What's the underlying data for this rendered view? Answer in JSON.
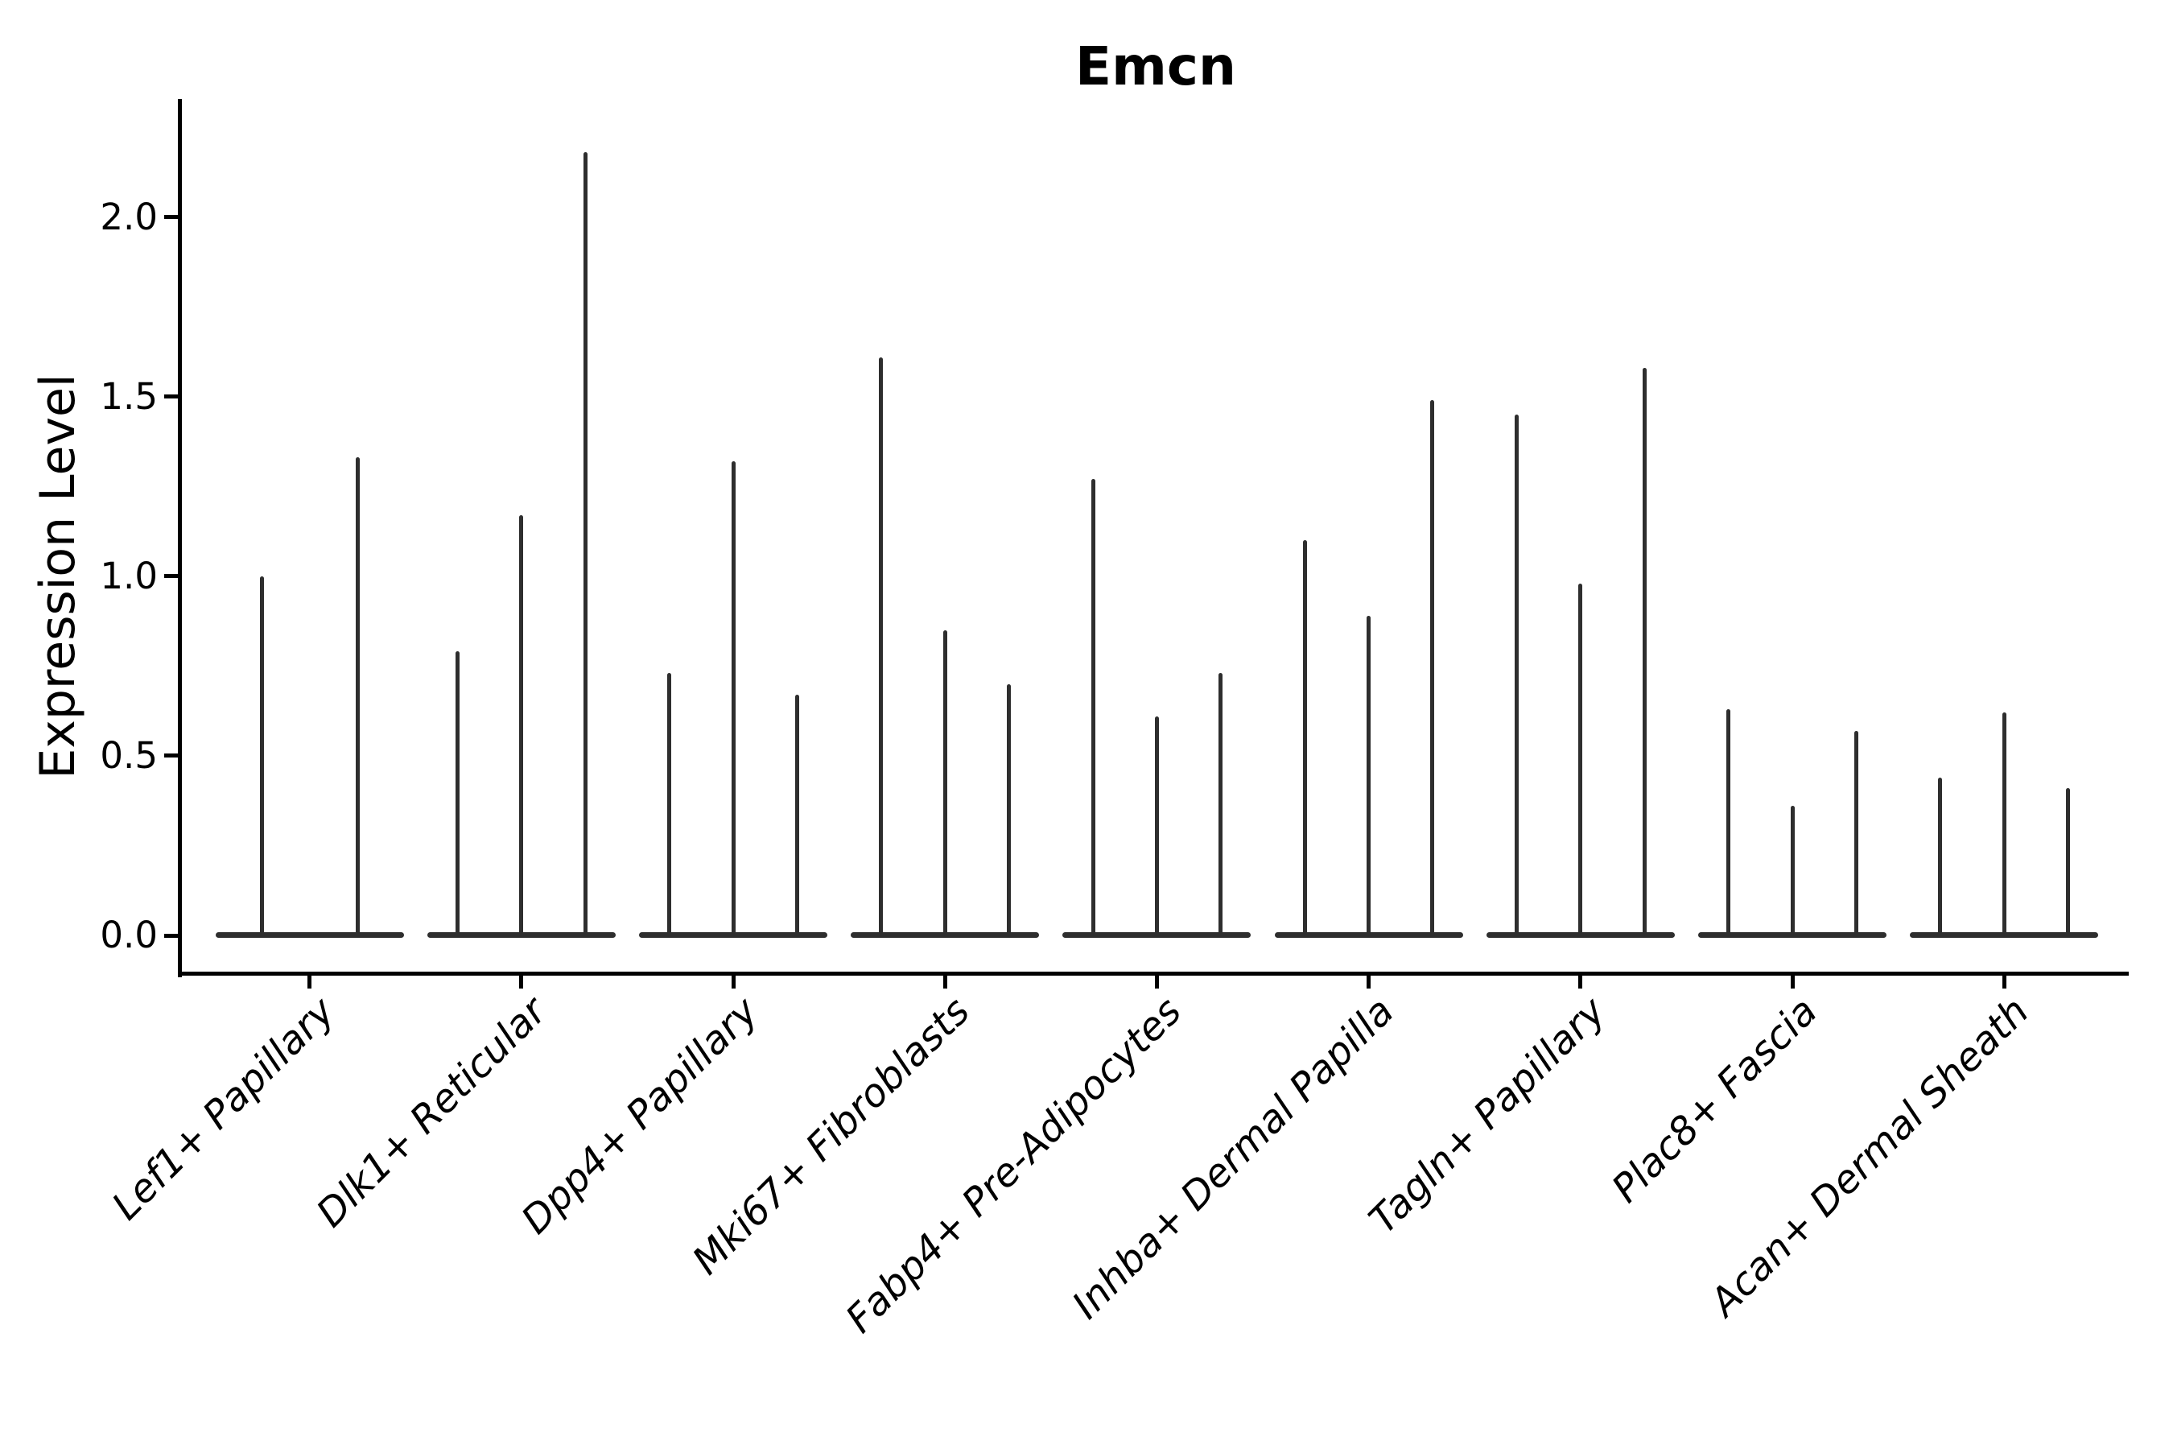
{
  "title": "Emcn",
  "y_axis": {
    "label": "Expression Level",
    "tick_labels": [
      "0.0",
      "0.5",
      "1.0",
      "1.5",
      "2.0"
    ],
    "tick_values": [
      0.0,
      0.5,
      1.0,
      1.5,
      2.0
    ]
  },
  "x_axis": {
    "label": "",
    "categories": [
      "Lef1+ Papillary",
      "Dlk1+ Reticular",
      "Dpp4+ Papillary",
      "Mki67+ Fibroblasts",
      "Fabp4+ Pre-Adipocytes",
      "Inhba+ Dermal Papilla",
      "Tagln+ Papillary",
      "Plac8+ Fascia",
      "Acan+ Dermal Sheath"
    ]
  },
  "colors": {
    "violin": "#2e2e2e",
    "axis": "#000000",
    "text": "#000000",
    "background": "#ffffff"
  },
  "chart_data": {
    "type": "violin",
    "title": "Emcn",
    "xlabel": "",
    "ylabel": "Expression Level",
    "ylim": [
      -0.11,
      2.33
    ],
    "yticks": [
      0.0,
      0.5,
      1.0,
      1.5,
      2.0
    ],
    "grid": false,
    "legend": "none",
    "mark_style": "zero-inflated violins: wide flat base at 0 with a single thin spike to the max expression value per violin",
    "categories": [
      "Lef1+ Papillary",
      "Dlk1+ Reticular",
      "Dpp4+ Papillary",
      "Mki67+ Fibroblasts",
      "Fabp4+ Pre-Adipocytes",
      "Inhba+ Dermal Papilla",
      "Tagln+ Papillary",
      "Plac8+ Fascia",
      "Acan+ Dermal Sheath"
    ],
    "series": [
      {
        "category": "Lef1+ Papillary",
        "violin_max_values": [
          1.0,
          1.33
        ]
      },
      {
        "category": "Dlk1+ Reticular",
        "violin_max_values": [
          0.79,
          1.17,
          2.18
        ]
      },
      {
        "category": "Dpp4+ Papillary",
        "violin_max_values": [
          0.73,
          1.32,
          0.67
        ]
      },
      {
        "category": "Mki67+ Fibroblasts",
        "violin_max_values": [
          1.61,
          0.85,
          0.7
        ]
      },
      {
        "category": "Fabp4+ Pre-Adipocytes",
        "violin_max_values": [
          1.27,
          0.61,
          0.73
        ]
      },
      {
        "category": "Inhba+ Dermal Papilla",
        "violin_max_values": [
          1.1,
          0.89,
          1.49
        ]
      },
      {
        "category": "Tagln+ Papillary",
        "violin_max_values": [
          1.45,
          0.98,
          1.58
        ]
      },
      {
        "category": "Plac8+ Fascia",
        "violin_max_values": [
          0.63,
          0.36,
          0.57
        ]
      },
      {
        "category": "Acan+ Dermal Sheath",
        "violin_max_values": [
          0.44,
          0.62,
          0.41
        ]
      }
    ]
  }
}
